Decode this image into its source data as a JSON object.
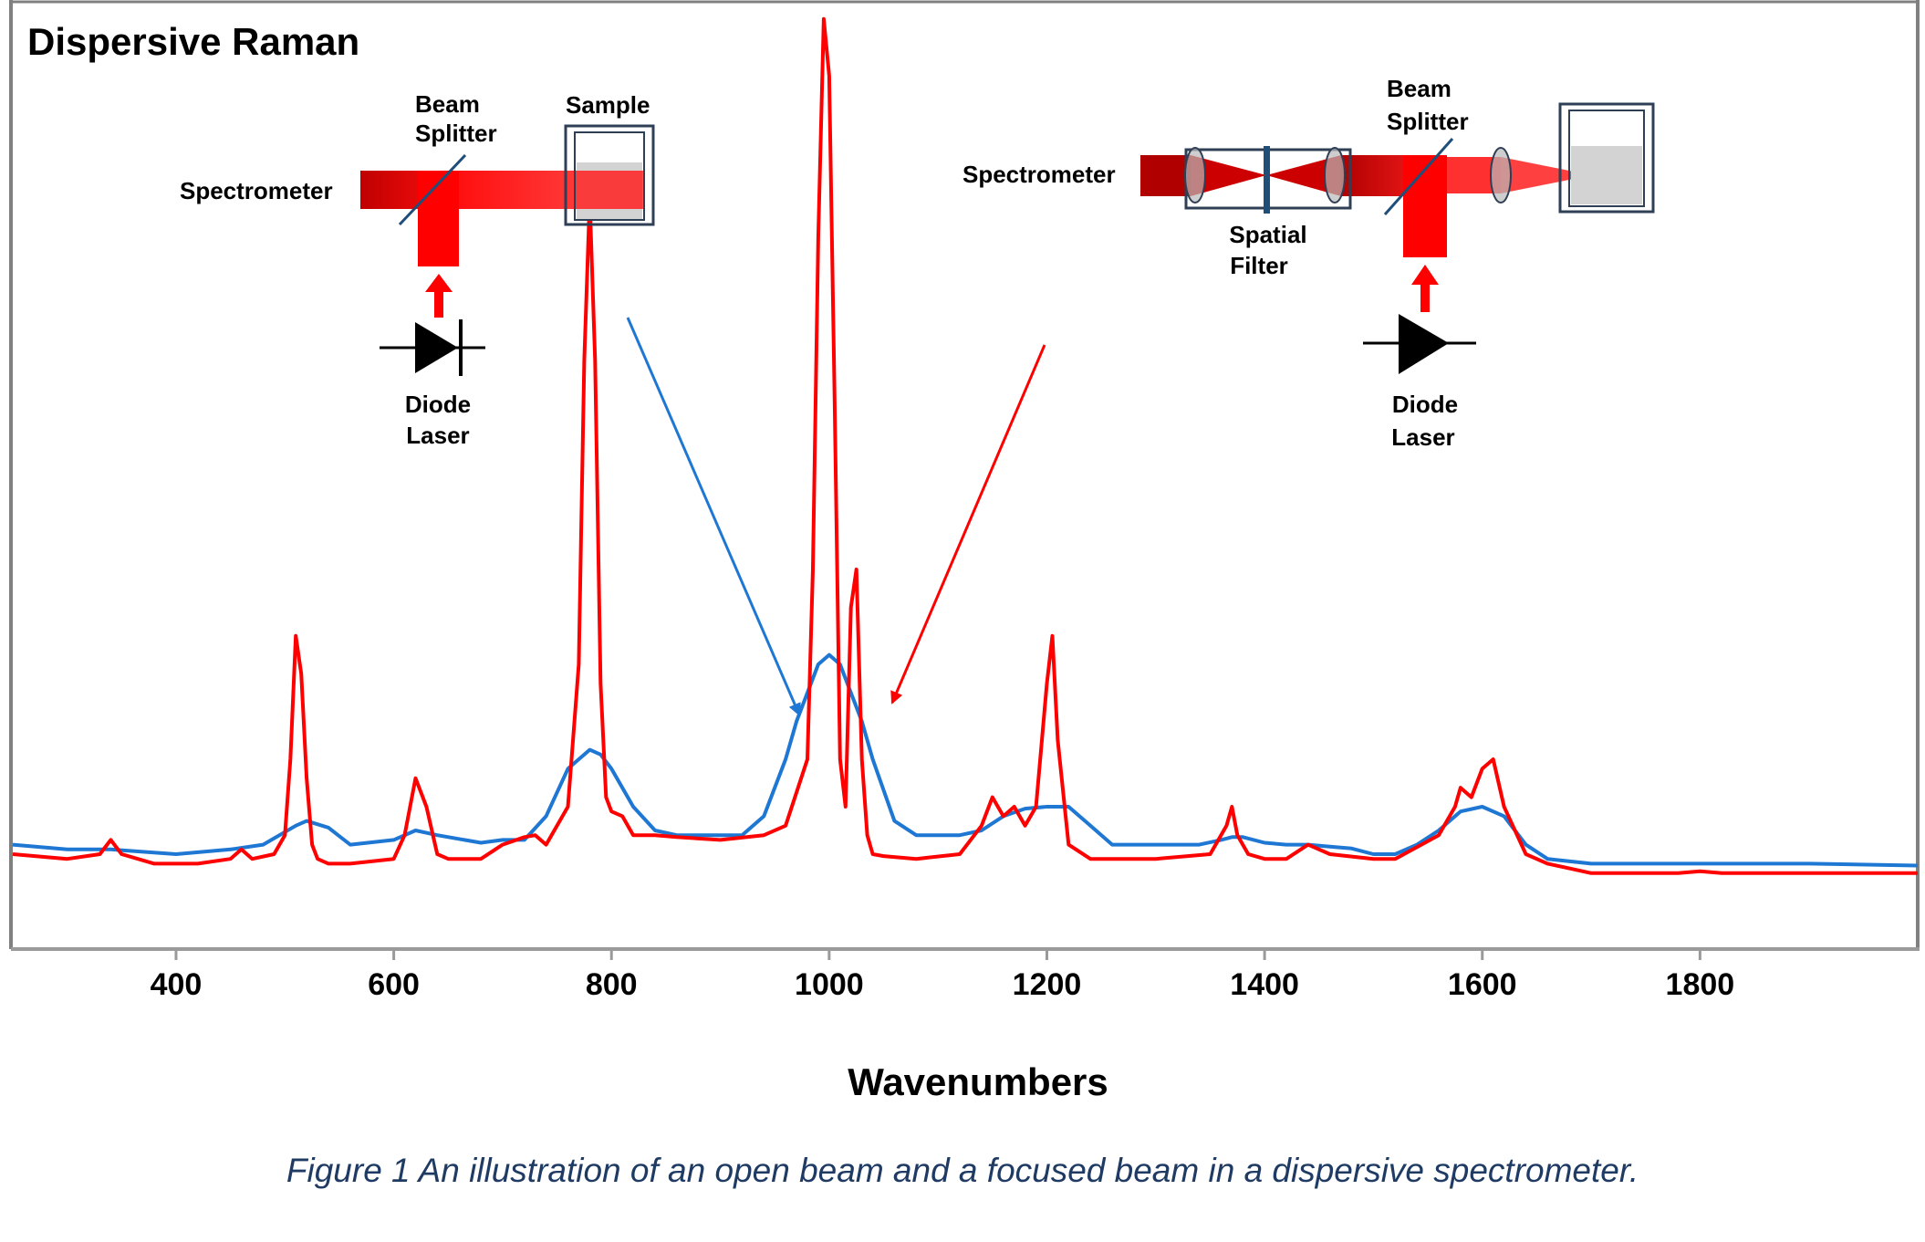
{
  "figure": {
    "caption": "Figure 1  An illustration of an open beam and a focused beam in a dispersive spectrometer.",
    "colors": {
      "open_beam": "#1f77d4",
      "focused_beam": "#ff0000",
      "frame": "#808080",
      "text": "#000000",
      "caption": "#1f3b63"
    }
  },
  "chart_data": {
    "type": "line",
    "title": "Dispersive Raman",
    "xlabel": "Wavenumbers",
    "ylabel": "",
    "xlim": [
      250,
      2000
    ],
    "ylim": [
      0,
      1.0
    ],
    "x_ticks": [
      400,
      600,
      800,
      1000,
      1200,
      1400,
      1600,
      1800
    ],
    "grid": false,
    "series": [
      {
        "key": "open_beam",
        "color": "#1f77d4",
        "x": [
          250,
          300,
          340,
          400,
          450,
          480,
          510,
          520,
          540,
          560,
          600,
          620,
          640,
          680,
          700,
          720,
          740,
          760,
          780,
          790,
          800,
          820,
          840,
          860,
          880,
          900,
          920,
          940,
          960,
          970,
          980,
          990,
          1000,
          1010,
          1020,
          1030,
          1040,
          1060,
          1080,
          1100,
          1120,
          1140,
          1160,
          1180,
          1200,
          1220,
          1240,
          1260,
          1300,
          1340,
          1360,
          1370,
          1380,
          1400,
          1420,
          1440,
          1460,
          1480,
          1500,
          1520,
          1540,
          1560,
          1580,
          1600,
          1620,
          1640,
          1660,
          1700,
          1800,
          1900,
          2000
        ],
        "y": [
          0.11,
          0.105,
          0.105,
          0.1,
          0.105,
          0.11,
          0.13,
          0.135,
          0.128,
          0.11,
          0.115,
          0.125,
          0.12,
          0.112,
          0.115,
          0.115,
          0.14,
          0.19,
          0.21,
          0.205,
          0.19,
          0.15,
          0.125,
          0.12,
          0.12,
          0.12,
          0.12,
          0.14,
          0.2,
          0.24,
          0.27,
          0.3,
          0.31,
          0.3,
          0.27,
          0.24,
          0.2,
          0.135,
          0.12,
          0.12,
          0.12,
          0.125,
          0.14,
          0.148,
          0.15,
          0.15,
          0.13,
          0.11,
          0.11,
          0.11,
          0.115,
          0.118,
          0.118,
          0.112,
          0.11,
          0.11,
          0.108,
          0.106,
          0.1,
          0.1,
          0.11,
          0.125,
          0.145,
          0.15,
          0.14,
          0.11,
          0.095,
          0.09,
          0.09,
          0.09,
          0.088
        ]
      },
      {
        "key": "focused_beam",
        "color": "#ff0000",
        "x": [
          250,
          300,
          330,
          340,
          350,
          380,
          420,
          450,
          460,
          470,
          490,
          500,
          505,
          510,
          515,
          520,
          525,
          530,
          540,
          560,
          600,
          610,
          620,
          630,
          640,
          650,
          680,
          700,
          720,
          730,
          740,
          760,
          770,
          775,
          780,
          785,
          790,
          795,
          800,
          810,
          820,
          840,
          860,
          900,
          940,
          960,
          980,
          985,
          990,
          995,
          1000,
          1005,
          1010,
          1015,
          1020,
          1025,
          1030,
          1035,
          1040,
          1050,
          1080,
          1120,
          1140,
          1150,
          1160,
          1170,
          1180,
          1190,
          1200,
          1205,
          1210,
          1220,
          1240,
          1300,
          1350,
          1365,
          1370,
          1375,
          1385,
          1400,
          1420,
          1440,
          1460,
          1500,
          1520,
          1560,
          1575,
          1580,
          1590,
          1600,
          1610,
          1620,
          1640,
          1660,
          1680,
          1700,
          1780,
          1800,
          1820,
          1900,
          2000
        ],
        "y": [
          0.1,
          0.095,
          0.1,
          0.115,
          0.1,
          0.09,
          0.09,
          0.095,
          0.105,
          0.095,
          0.1,
          0.12,
          0.2,
          0.33,
          0.29,
          0.18,
          0.11,
          0.095,
          0.09,
          0.09,
          0.095,
          0.12,
          0.18,
          0.15,
          0.1,
          0.095,
          0.095,
          0.11,
          0.118,
          0.12,
          0.11,
          0.15,
          0.3,
          0.62,
          0.79,
          0.62,
          0.28,
          0.16,
          0.145,
          0.14,
          0.12,
          0.12,
          0.118,
          0.115,
          0.12,
          0.13,
          0.2,
          0.4,
          0.75,
          0.98,
          0.92,
          0.58,
          0.2,
          0.15,
          0.36,
          0.4,
          0.2,
          0.12,
          0.1,
          0.098,
          0.095,
          0.1,
          0.13,
          0.16,
          0.14,
          0.15,
          0.13,
          0.15,
          0.28,
          0.33,
          0.22,
          0.11,
          0.095,
          0.095,
          0.1,
          0.13,
          0.15,
          0.12,
          0.1,
          0.095,
          0.095,
          0.11,
          0.1,
          0.095,
          0.095,
          0.12,
          0.15,
          0.17,
          0.16,
          0.19,
          0.2,
          0.15,
          0.1,
          0.09,
          0.085,
          0.08,
          0.08,
          0.082,
          0.08,
          0.08,
          0.08
        ]
      }
    ]
  },
  "diagram_left": {
    "beam_splitter": "Beam\nSplitter",
    "sample": "Sample",
    "spectrometer": "Spectrometer",
    "diode_laser": "Diode\nLaser"
  },
  "diagram_right": {
    "beam_splitter": "Beam\nSplitter",
    "spectrometer": "Spectrometer",
    "spatial_filter": "Spatial\nFilter",
    "diode_laser": "Diode\nLaser"
  }
}
